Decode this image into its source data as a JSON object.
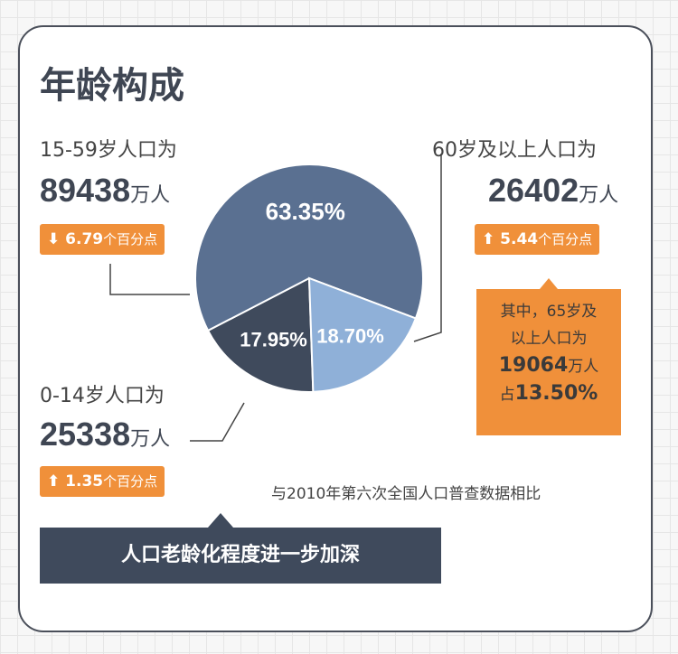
{
  "title": "年龄构成",
  "groups": [
    {
      "label": "15-59岁人口为",
      "value": "89438",
      "unit": "万人",
      "change_dir": "down",
      "change": "6.79",
      "change_unit": "个百分点"
    },
    {
      "label": "60岁及以上人口为",
      "value": "26402",
      "unit": "万人",
      "change_dir": "up",
      "change": "5.44",
      "change_unit": "个百分点"
    },
    {
      "label": "0-14岁人口为",
      "value": "25338",
      "unit": "万人",
      "change_dir": "up",
      "change": "1.35",
      "change_unit": "个百分点"
    }
  ],
  "note": {
    "line1": "其中，65岁及",
    "line2": "以上人口为",
    "value": "19064",
    "unit": "万人",
    "share_prefix": "占",
    "share": "13.50%"
  },
  "comparison": "与2010年第六次全国人口普查数据相比",
  "banner": "人口老龄化程度进一步加深",
  "colors": {
    "orange": "#f0903a",
    "slice_15_59": "#5a7091",
    "slice_60plus": "#8fb0d8",
    "slice_0_14": "#3f4a5c"
  },
  "chart_data": {
    "type": "pie",
    "slices": [
      {
        "category": "0-14岁",
        "value": 17.95,
        "label": "17.95%"
      },
      {
        "category": "15-59岁",
        "value": 63.35,
        "label": "63.35%"
      },
      {
        "category": "60岁及以上",
        "value": 18.7,
        "label": "18.70%"
      }
    ]
  }
}
